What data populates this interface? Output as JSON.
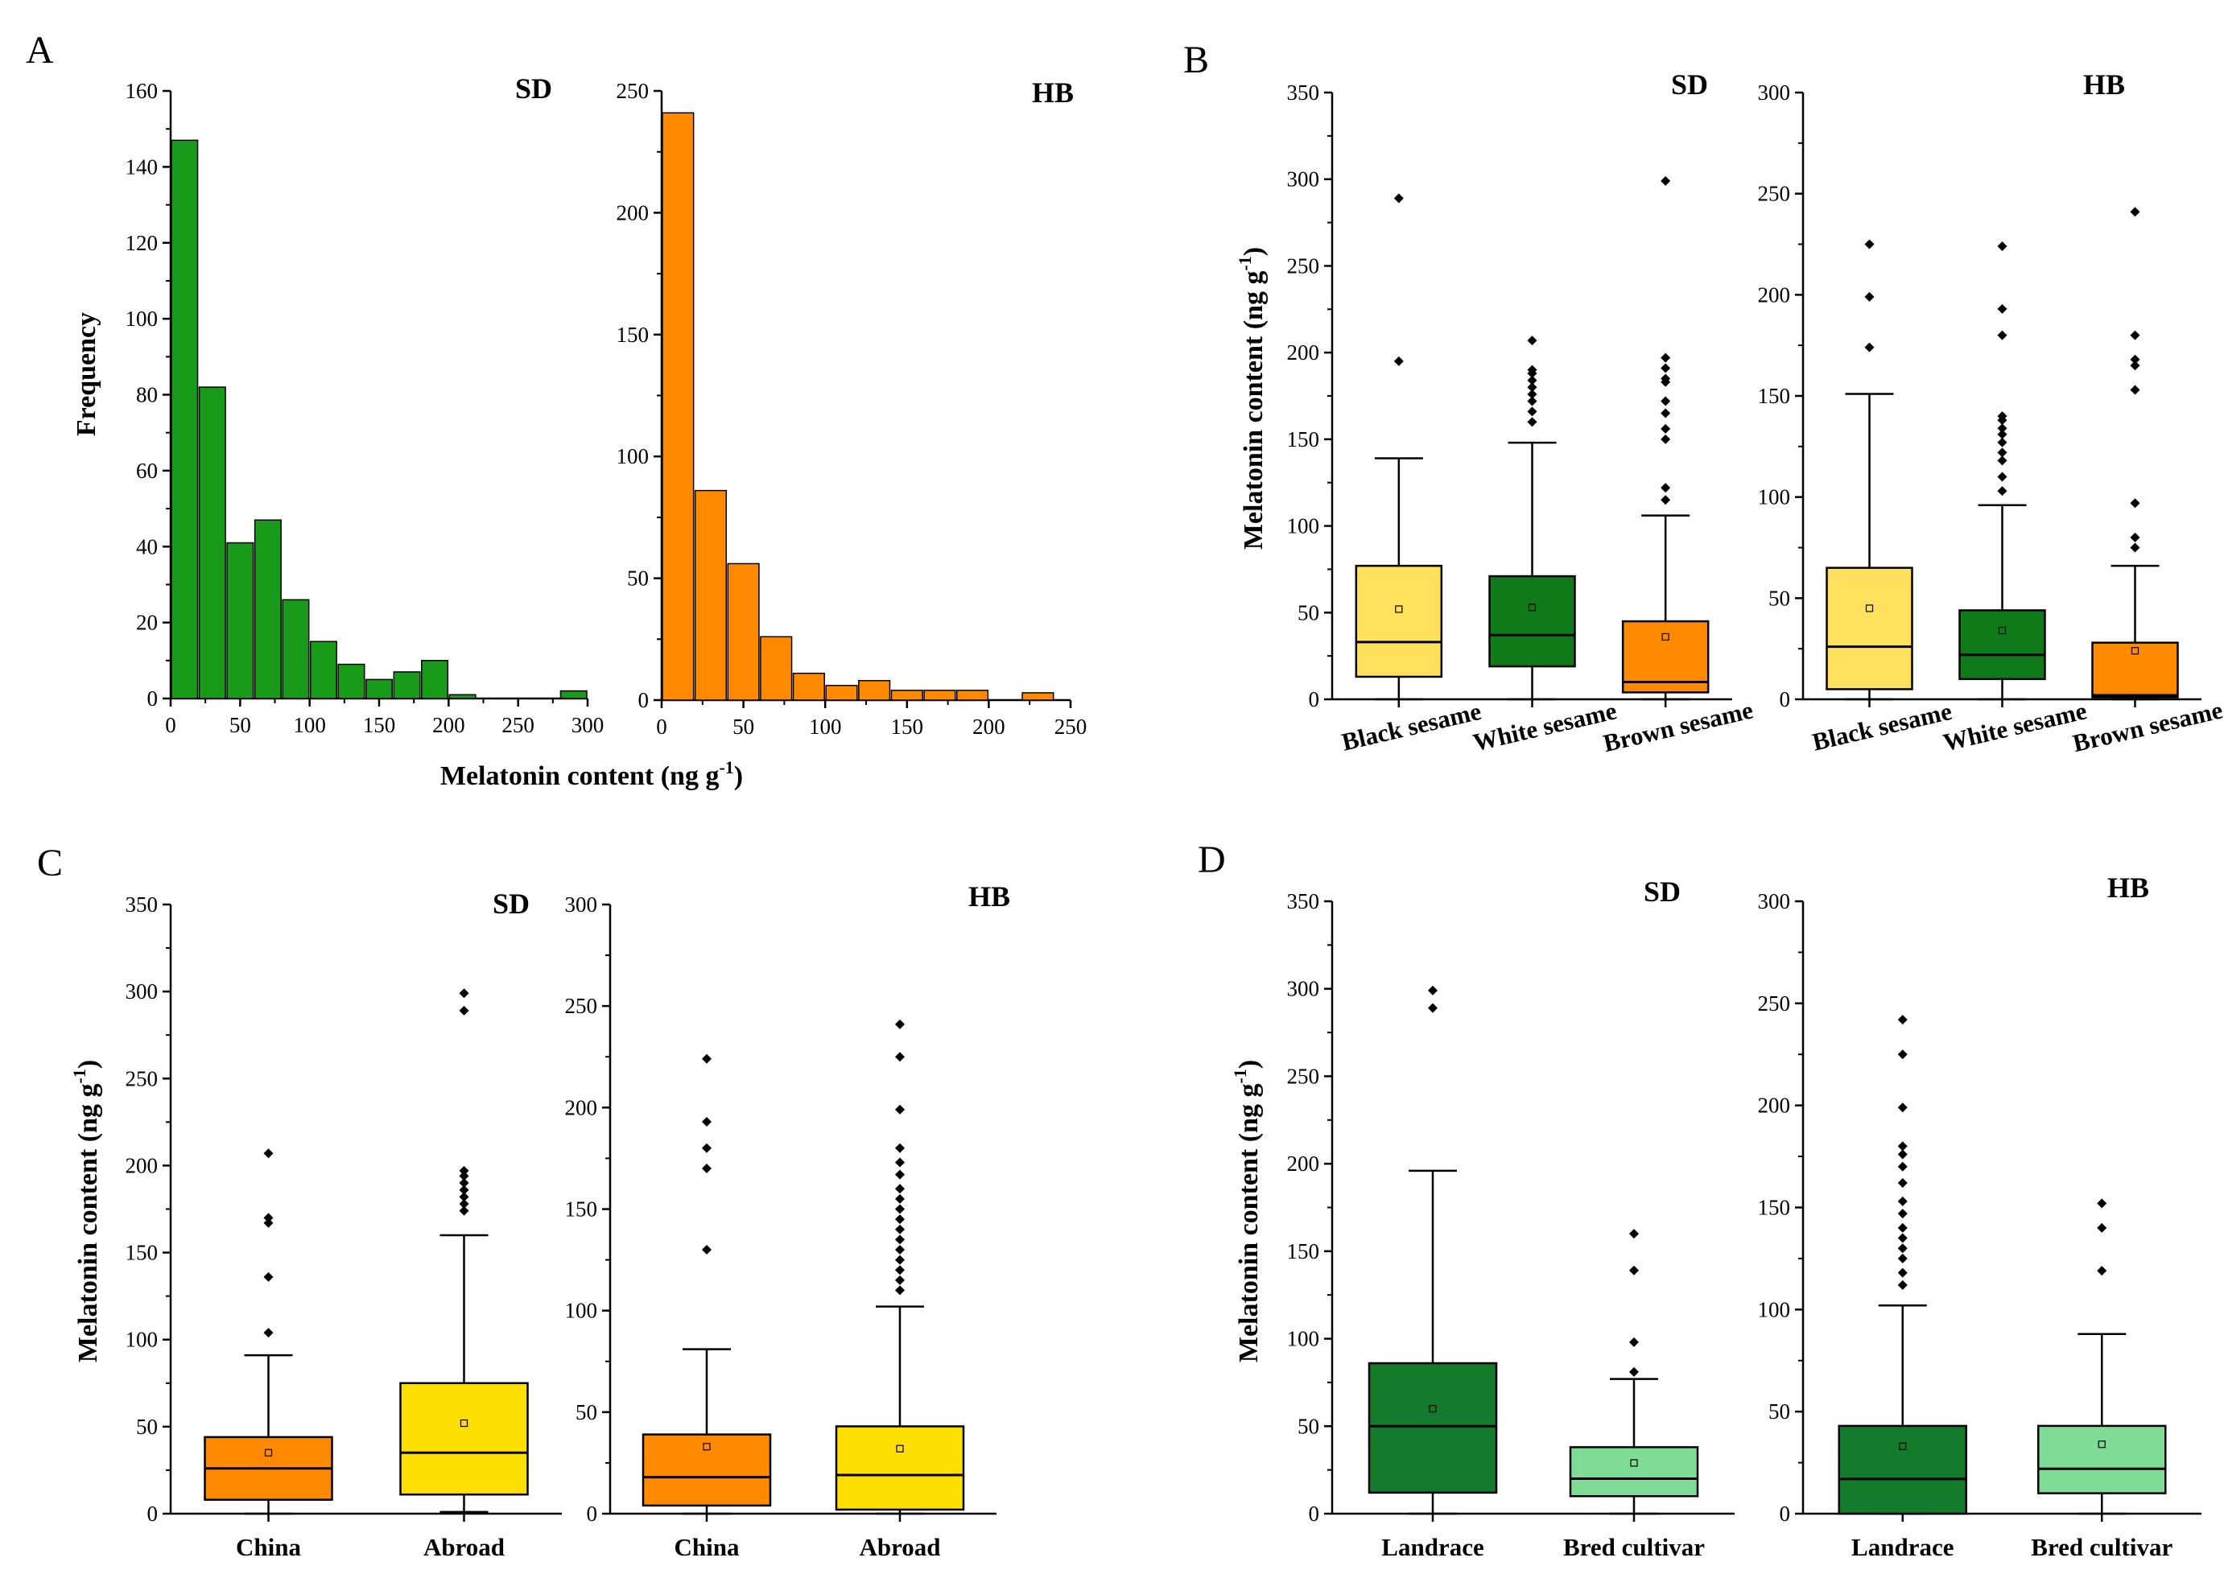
{
  "panel_letters": {
    "a": "A",
    "b": "B",
    "c": "C",
    "d": "D"
  },
  "axis_titles": {
    "frequency": "Frequency",
    "melatonin_x": "Melatonin content (ng g",
    "melatonin_y": "Melatonin content (ng g",
    "unit_sup": "-1",
    "close_paren": ")"
  },
  "colors": {
    "green": "#1a9a1a",
    "orange": "#ff8a00",
    "lightyellow": "#ffe15e",
    "darkgreen": "#0e7a1a",
    "yellow": "#ffdf00",
    "lightgreen": "#7fdc96",
    "darkgreen2": "#127a2a"
  },
  "chart_data": [
    {
      "id": "A-SD",
      "type": "bar",
      "title": "SD",
      "xlabel": "Melatonin content (ng g-1)",
      "ylabel": "Frequency",
      "bin_starts": [
        0,
        20,
        40,
        60,
        80,
        100,
        120,
        140,
        160,
        180,
        200,
        220,
        240,
        260,
        280
      ],
      "bin_width": 20,
      "values": [
        147,
        82,
        41,
        47,
        26,
        15,
        9,
        5,
        7,
        10,
        1,
        0,
        0,
        0,
        2
      ],
      "xlim": [
        0,
        300
      ],
      "ylim": [
        0,
        160
      ],
      "xticks": [
        "0",
        "50",
        "100",
        "150",
        "200",
        "250",
        "300"
      ],
      "yticks": [
        "0",
        "20",
        "40",
        "60",
        "80",
        "100",
        "120",
        "140",
        "160"
      ],
      "color": "#1a9a1a"
    },
    {
      "id": "A-HB",
      "type": "bar",
      "title": "HB",
      "bin_starts": [
        0,
        20,
        40,
        60,
        80,
        100,
        120,
        140,
        160,
        180,
        200,
        220
      ],
      "bin_width": 20,
      "values": [
        241,
        86,
        56,
        26,
        11,
        6,
        8,
        4,
        4,
        4,
        0,
        3
      ],
      "xlim": [
        0,
        250
      ],
      "ylim": [
        0,
        250
      ],
      "xticks": [
        "0",
        "50",
        "100",
        "150",
        "200",
        "250"
      ],
      "yticks": [
        "0",
        "50",
        "100",
        "150",
        "200",
        "250"
      ],
      "color": "#ff8a00"
    },
    {
      "id": "B-SD",
      "type": "box",
      "title": "SD",
      "ylabel": "Melatonin content (ng g-1)",
      "ylim": [
        0,
        350
      ],
      "yticks": [
        "0",
        "50",
        "100",
        "150",
        "200",
        "250",
        "300",
        "350"
      ],
      "categories": [
        "Black sesame",
        "White sesame",
        "Brown sesame"
      ],
      "boxes": [
        {
          "min": 0,
          "q1": 13,
          "median": 33,
          "q3": 77,
          "max": 139,
          "mean": 52,
          "color": "#ffe15e",
          "outliers": [
            195,
            289
          ]
        },
        {
          "min": 0,
          "q1": 19,
          "median": 37,
          "q3": 71,
          "max": 148,
          "mean": 53,
          "color": "#0e7a1a",
          "outliers": [
            160,
            166,
            172,
            176,
            180,
            184,
            188,
            190,
            207
          ]
        },
        {
          "min": 0,
          "q1": 4,
          "median": 10,
          "q3": 45,
          "max": 106,
          "mean": 36,
          "color": "#ff8a00",
          "outliers": [
            115,
            122,
            150,
            156,
            165,
            172,
            183,
            185,
            191,
            197,
            299
          ]
        }
      ]
    },
    {
      "id": "B-HB",
      "type": "box",
      "title": "HB",
      "ylim": [
        0,
        300
      ],
      "yticks": [
        "0",
        "50",
        "100",
        "150",
        "200",
        "250",
        "300"
      ],
      "categories": [
        "Black sesame",
        "White sesame",
        "Brown sesame"
      ],
      "boxes": [
        {
          "min": 0,
          "q1": 5,
          "median": 26,
          "q3": 65,
          "max": 151,
          "mean": 45,
          "color": "#ffe15e",
          "outliers": [
            174,
            199,
            225
          ]
        },
        {
          "min": 0,
          "q1": 10,
          "median": 22,
          "q3": 44,
          "max": 96,
          "mean": 34,
          "color": "#0e7a1a",
          "outliers": [
            103,
            110,
            118,
            122,
            127,
            131,
            134,
            138,
            140,
            180,
            193,
            224
          ]
        },
        {
          "min": 0,
          "q1": 1,
          "median": 2,
          "q3": 28,
          "max": 66,
          "mean": 24,
          "color": "#ff8a00",
          "outliers": [
            75,
            80,
            97,
            153,
            165,
            168,
            180,
            241
          ]
        }
      ]
    },
    {
      "id": "C-SD",
      "type": "box",
      "title": "SD",
      "ylabel": "Melatonin content (ng g-1)",
      "ylim": [
        0,
        350
      ],
      "yticks": [
        "0",
        "50",
        "100",
        "150",
        "200",
        "250",
        "300",
        "350"
      ],
      "categories": [
        "China",
        "Abroad"
      ],
      "boxes": [
        {
          "min": 0,
          "q1": 8,
          "median": 26,
          "q3": 44,
          "max": 91,
          "mean": 35,
          "color": "#ff8a00",
          "outliers": [
            104,
            136,
            167,
            170,
            207
          ]
        },
        {
          "min": 1,
          "q1": 11,
          "median": 35,
          "q3": 75,
          "max": 160,
          "mean": 52,
          "color": "#ffdf00",
          "outliers": [
            174,
            178,
            182,
            186,
            190,
            194,
            197,
            289,
            299
          ]
        }
      ]
    },
    {
      "id": "C-HB",
      "type": "box",
      "title": "HB",
      "ylim": [
        0,
        300
      ],
      "yticks": [
        "0",
        "50",
        "100",
        "150",
        "200",
        "250",
        "300"
      ],
      "categories": [
        "China",
        "Abroad"
      ],
      "boxes": [
        {
          "min": 0,
          "q1": 4,
          "median": 18,
          "q3": 39,
          "max": 81,
          "mean": 33,
          "color": "#ff8a00",
          "outliers": [
            130,
            170,
            180,
            193,
            224
          ]
        },
        {
          "min": 0,
          "q1": 2,
          "median": 19,
          "q3": 43,
          "max": 102,
          "mean": 32,
          "color": "#ffdf00",
          "outliers": [
            110,
            115,
            120,
            125,
            130,
            135,
            140,
            145,
            150,
            155,
            160,
            167,
            173,
            180,
            199,
            225,
            241
          ]
        }
      ]
    },
    {
      "id": "D-SD",
      "type": "box",
      "title": "SD",
      "ylabel": "Melatonin content (ng g-1)",
      "ylim": [
        0,
        350
      ],
      "yticks": [
        "0",
        "50",
        "100",
        "150",
        "200",
        "250",
        "300",
        "350"
      ],
      "categories": [
        "Landrace",
        "Bred cultivar"
      ],
      "boxes": [
        {
          "min": 0,
          "q1": 12,
          "median": 50,
          "q3": 86,
          "max": 196,
          "mean": 60,
          "color": "#127a2a",
          "outliers": [
            289,
            299
          ]
        },
        {
          "min": 0,
          "q1": 10,
          "median": 20,
          "q3": 38,
          "max": 77,
          "mean": 29,
          "color": "#7fdc96",
          "outliers": [
            81,
            98,
            139,
            160
          ]
        }
      ]
    },
    {
      "id": "D-HB",
      "type": "box",
      "title": "HB",
      "ylim": [
        0,
        300
      ],
      "yticks": [
        "0",
        "50",
        "100",
        "150",
        "200",
        "250",
        "300"
      ],
      "categories": [
        "Landrace",
        "Bred cultivar"
      ],
      "boxes": [
        {
          "min": 0,
          "q1": 0,
          "median": 17,
          "q3": 43,
          "max": 102,
          "mean": 33,
          "color": "#127a2a",
          "outliers": [
            112,
            118,
            125,
            130,
            135,
            140,
            147,
            153,
            162,
            170,
            176,
            180,
            199,
            225,
            242
          ]
        },
        {
          "min": 0,
          "q1": 10,
          "median": 22,
          "q3": 43,
          "max": 88,
          "mean": 34,
          "color": "#7fdc96",
          "outliers": [
            119,
            140,
            152
          ]
        }
      ]
    }
  ]
}
